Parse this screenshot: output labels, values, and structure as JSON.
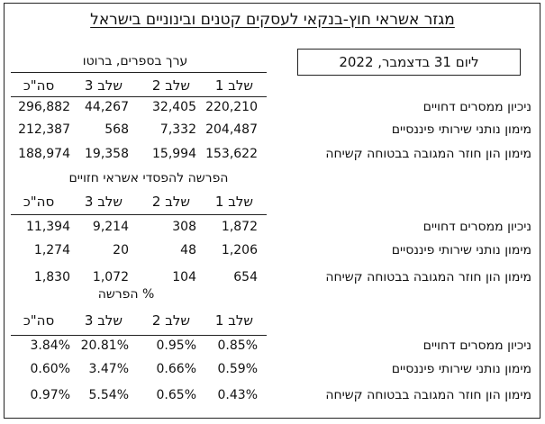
{
  "title": "מגזר אשראי חוץ-בנקאי לעסקים קטנים ובינוניים בישראל",
  "date_label": "ליום 31 בדצמבר, 2022",
  "columns": [
    "שלב 1",
    "שלב 2",
    "שלב 3",
    "סה\"כ"
  ],
  "row_labels": [
    "ניכיון ממסרים דחויים",
    "מימון נותני שירותי פיננסיים",
    "מימון הון חוזר המגובה בבטוחה קשיחה"
  ],
  "sections": [
    {
      "title": "ערך בספרים, ברוטו",
      "rows": [
        [
          "220,210",
          "32,405",
          "44,267",
          "296,882"
        ],
        [
          "204,487",
          "7,332",
          "568",
          "212,387"
        ],
        [
          "153,622",
          "15,994",
          "19,358",
          "188,974"
        ]
      ]
    },
    {
      "title": "הפרשה להפסדי אשראי חזויים",
      "rows": [
        [
          "1,872",
          "308",
          "9,214",
          "11,394"
        ],
        [
          "1,206",
          "48",
          "20",
          "1,274"
        ],
        [
          "654",
          "104",
          "1,072",
          "1,830"
        ]
      ]
    },
    {
      "title": "% הפרשה",
      "rows": [
        [
          "0.85%",
          "0.95%",
          "20.81%",
          "3.84%"
        ],
        [
          "0.59%",
          "0.66%",
          "3.47%",
          "0.60%"
        ],
        [
          "0.43%",
          "0.65%",
          "5.54%",
          "0.97%"
        ]
      ]
    }
  ]
}
